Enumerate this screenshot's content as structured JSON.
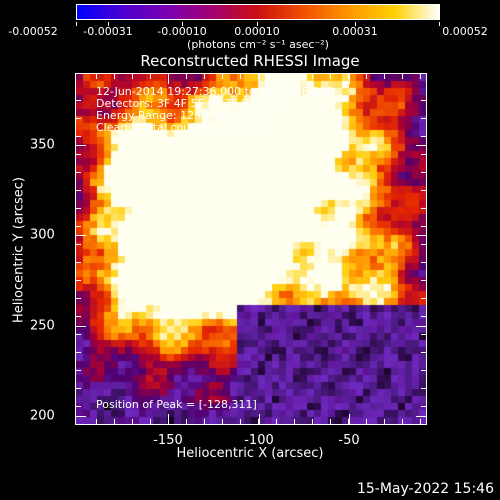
{
  "colorbar": {
    "labels": [
      "-0.00052",
      "-0.00031",
      "-0.00010",
      "0.00010",
      "0.00031",
      "0.00052"
    ],
    "units": "(photons cm⁻² s⁻¹ asec⁻²)",
    "colormap": [
      "#0000ff",
      "#4b00d0",
      "#7a00b0",
      "#a30070",
      "#cc1010",
      "#f05000",
      "#ff9500",
      "#ffd000",
      "#ffffff"
    ]
  },
  "title": "Reconstructed RHESSI Image",
  "info": {
    "time": "12-Jun-2014 19:27:36.000 to 19:33:36.000",
    "detectors": "Detectors: 3F 4F 5F 6F 7F 8F, Att 0",
    "energy": "Energy Range: 12.0 - 25.0 keV",
    "clean": "Clean    Total counts: 1.28E+04"
  },
  "peak": "Position of Peak = [-128,311]",
  "axes": {
    "xlabel": "Heliocentric X (arcsec)",
    "ylabel": "Heliocentric Y (arcsec)",
    "xticks": [
      "-150",
      "-100",
      "-50"
    ],
    "yticks": [
      "350",
      "300",
      "250",
      "200"
    ]
  },
  "footer_date": "15-May-2022 15:46"
}
